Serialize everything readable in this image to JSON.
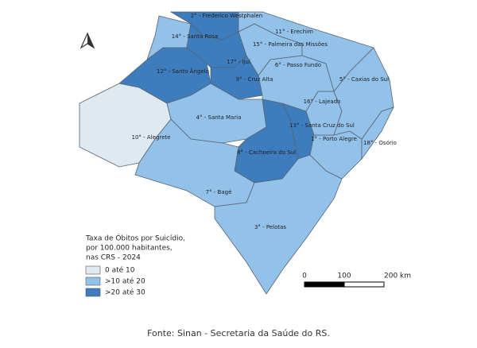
{
  "map": {
    "regions": [
      {
        "label": "10° - Alegrete",
        "color": "#dfe9f2"
      },
      {
        "label": "12° - Santo Ângelo",
        "color": "#3d7cbd"
      },
      {
        "label": "14° - Santa Rosa",
        "color": "#92c1e9"
      },
      {
        "label": "2° - Frederico Westphalen",
        "color": "#3d7cbd"
      },
      {
        "label": "17° - Ijuí",
        "color": "#3d7cbd"
      },
      {
        "label": "9° - Cruz Alta",
        "color": "#3d7cbd"
      },
      {
        "label": "4° - Santa Maria",
        "color": "#92c1e9"
      },
      {
        "label": "8° - Cachoeira do Sul",
        "color": "#3d7cbd"
      },
      {
        "label": "13° - Santa Cruz do Sul",
        "color": "#3d7cbd"
      },
      {
        "label": "7° - Bagé",
        "color": "#92c1e9"
      },
      {
        "label": "3° - Pelotas",
        "color": "#92c1e9"
      },
      {
        "label": "1° - Porto Alegre",
        "color": "#92c1e9"
      },
      {
        "label": "18° - Osório",
        "color": "#92c1e9"
      },
      {
        "label": "16° - Lajeado",
        "color": "#92c1e9"
      },
      {
        "label": "5° - Caxias do Sul",
        "color": "#92c1e9"
      },
      {
        "label": "6° - Passo Fundo",
        "color": "#92c1e9"
      },
      {
        "label": "15° - Palmeira das Missões",
        "color": "#92c1e9"
      },
      {
        "label": "11° - Erechim",
        "color": "#92c1e9"
      }
    ],
    "legend": {
      "title": [
        "Taxa de Óbitos por Suicídio,",
        "por 100.000 habitantes,",
        "nas CRS - 2024"
      ],
      "items": [
        {
          "label": "0 até 10",
          "color": "#dfe9f2"
        },
        {
          "label": ">10 até 20",
          "color": "#92c1e9"
        },
        {
          "label": ">20 até 30",
          "color": "#3d7cbd"
        }
      ]
    },
    "scale": {
      "labels": [
        "0",
        "100",
        "200 km"
      ]
    }
  },
  "source": "Fonte: Sinan - Secretaria da Saúde do RS."
}
